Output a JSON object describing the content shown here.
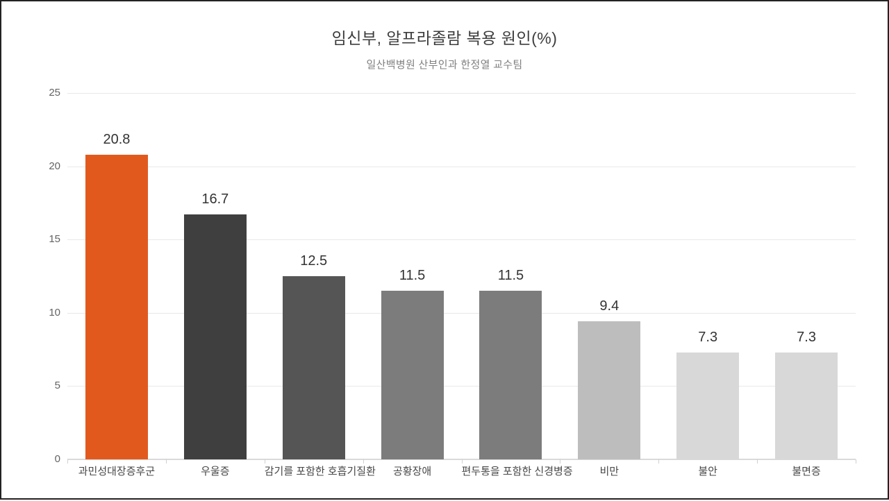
{
  "frame": {
    "background": "#ffffff",
    "border_color": "#222222"
  },
  "chart_data": {
    "type": "bar",
    "title": "임신부, 알프라졸람 복용 원인(%)",
    "subtitle": "일산백병원 산부인과 한정열 교수팀",
    "categories": [
      "과민성대장증후군",
      "우울증",
      "감기를 포함한 호흡기질환",
      "공황장애",
      "편두통을 포함한 신경병증",
      "비만",
      "불안",
      "불면증"
    ],
    "values": [
      20.8,
      16.7,
      12.5,
      11.5,
      11.5,
      9.4,
      7.3,
      7.3
    ],
    "value_labels": [
      "20.8",
      "16.7",
      "12.5",
      "11.5",
      "11.5",
      "9.4",
      "7.3",
      "7.3"
    ],
    "bar_colors": [
      "#e2591e",
      "#3f3f3f",
      "#555555",
      "#7c7c7c",
      "#7c7c7c",
      "#bdbdbd",
      "#d8d8d8",
      "#d8d8d8"
    ],
    "accent_color": "#e2591e",
    "xlabel": "",
    "ylabel": "",
    "ylim": [
      0,
      25
    ],
    "y_ticks": [
      0,
      5,
      10,
      15,
      20,
      25
    ],
    "grid": true,
    "legend": "none"
  }
}
